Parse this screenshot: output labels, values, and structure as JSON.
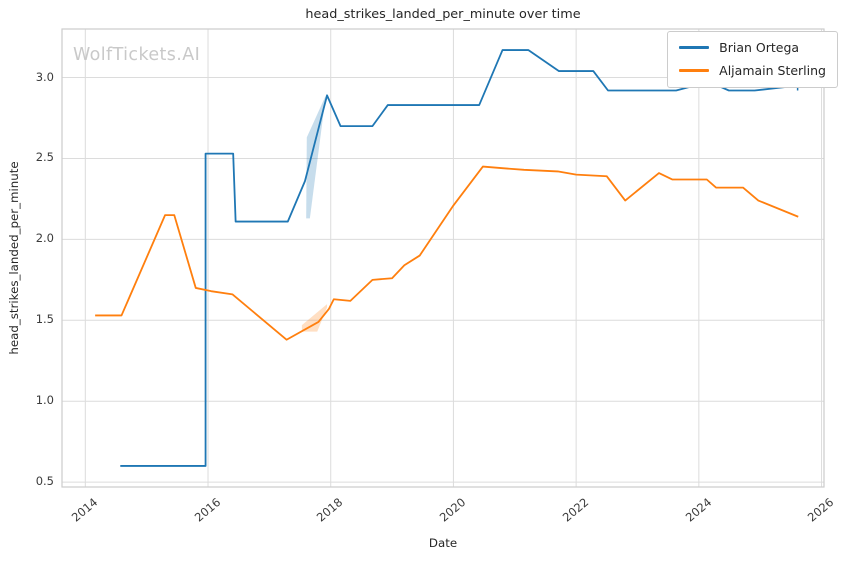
{
  "chart_data": {
    "type": "line",
    "title": "head_strikes_landed_per_minute over time",
    "xlabel": "Date",
    "ylabel": "head_strikes_landed_per_minute",
    "watermark": "WolfTickets.AI",
    "x_ticks": [
      2014,
      2016,
      2018,
      2020,
      2022,
      2024,
      2026
    ],
    "y_ticks": [
      0.5,
      1.0,
      1.5,
      2.0,
      2.5,
      3.0
    ],
    "x_range": [
      2013.62,
      2026.04
    ],
    "y_range": [
      0.47,
      3.3
    ],
    "grid": true,
    "legend_position": "upper right",
    "grid_color": "#dcdcdc",
    "spine_color": "#cccccc",
    "band_opacity": 0.25,
    "series": [
      {
        "name": "Brian Ortega",
        "color": "#1f77b4",
        "points": [
          [
            2014.57,
            0.6
          ],
          [
            2015.96,
            0.6
          ],
          [
            2015.96,
            2.53
          ],
          [
            2016.41,
            2.53
          ],
          [
            2016.45,
            2.11
          ],
          [
            2017.3,
            2.11
          ],
          [
            2017.58,
            2.36
          ],
          [
            2017.94,
            2.89
          ],
          [
            2018.16,
            2.7
          ],
          [
            2018.68,
            2.7
          ],
          [
            2018.93,
            2.83
          ],
          [
            2020.42,
            2.83
          ],
          [
            2020.8,
            3.17
          ],
          [
            2021.22,
            3.17
          ],
          [
            2021.72,
            3.04
          ],
          [
            2022.28,
            3.04
          ],
          [
            2022.52,
            2.92
          ],
          [
            2023.63,
            2.92
          ],
          [
            2024.03,
            2.96
          ],
          [
            2024.25,
            2.96
          ],
          [
            2024.49,
            2.92
          ],
          [
            2024.91,
            2.92
          ],
          [
            2025.61,
            2.95
          ]
        ],
        "band": [
          [
            2017.6,
            2.13
          ],
          [
            2017.61,
            2.63
          ],
          [
            2017.92,
            2.89
          ],
          [
            2017.66,
            2.13
          ]
        ],
        "end_cap": {
          "x": 2025.61,
          "y_low": 2.92,
          "y_high": 2.97
        }
      },
      {
        "name": "Aljamain Sterling",
        "color": "#ff7f0e",
        "points": [
          [
            2014.16,
            1.53
          ],
          [
            2014.59,
            1.53
          ],
          [
            2015.3,
            2.15
          ],
          [
            2015.45,
            2.15
          ],
          [
            2015.8,
            1.7
          ],
          [
            2016.05,
            1.68
          ],
          [
            2016.4,
            1.66
          ],
          [
            2017.28,
            1.38
          ],
          [
            2017.8,
            1.49
          ],
          [
            2017.97,
            1.57
          ],
          [
            2018.05,
            1.63
          ],
          [
            2018.32,
            1.62
          ],
          [
            2018.68,
            1.75
          ],
          [
            2019.0,
            1.76
          ],
          [
            2019.2,
            1.84
          ],
          [
            2019.45,
            1.9
          ],
          [
            2020.0,
            2.21
          ],
          [
            2020.48,
            2.45
          ],
          [
            2020.8,
            2.44
          ],
          [
            2021.15,
            2.43
          ],
          [
            2021.7,
            2.42
          ],
          [
            2022.0,
            2.4
          ],
          [
            2022.5,
            2.39
          ],
          [
            2022.8,
            2.24
          ],
          [
            2023.35,
            2.41
          ],
          [
            2023.57,
            2.37
          ],
          [
            2024.13,
            2.37
          ],
          [
            2024.28,
            2.32
          ],
          [
            2024.72,
            2.32
          ],
          [
            2024.97,
            2.24
          ],
          [
            2025.62,
            2.14
          ]
        ],
        "band": [
          [
            2017.53,
            1.47
          ],
          [
            2017.94,
            1.6
          ],
          [
            2017.94,
            1.58
          ],
          [
            2017.78,
            1.43
          ],
          [
            2017.53,
            1.43
          ]
        ]
      }
    ]
  }
}
